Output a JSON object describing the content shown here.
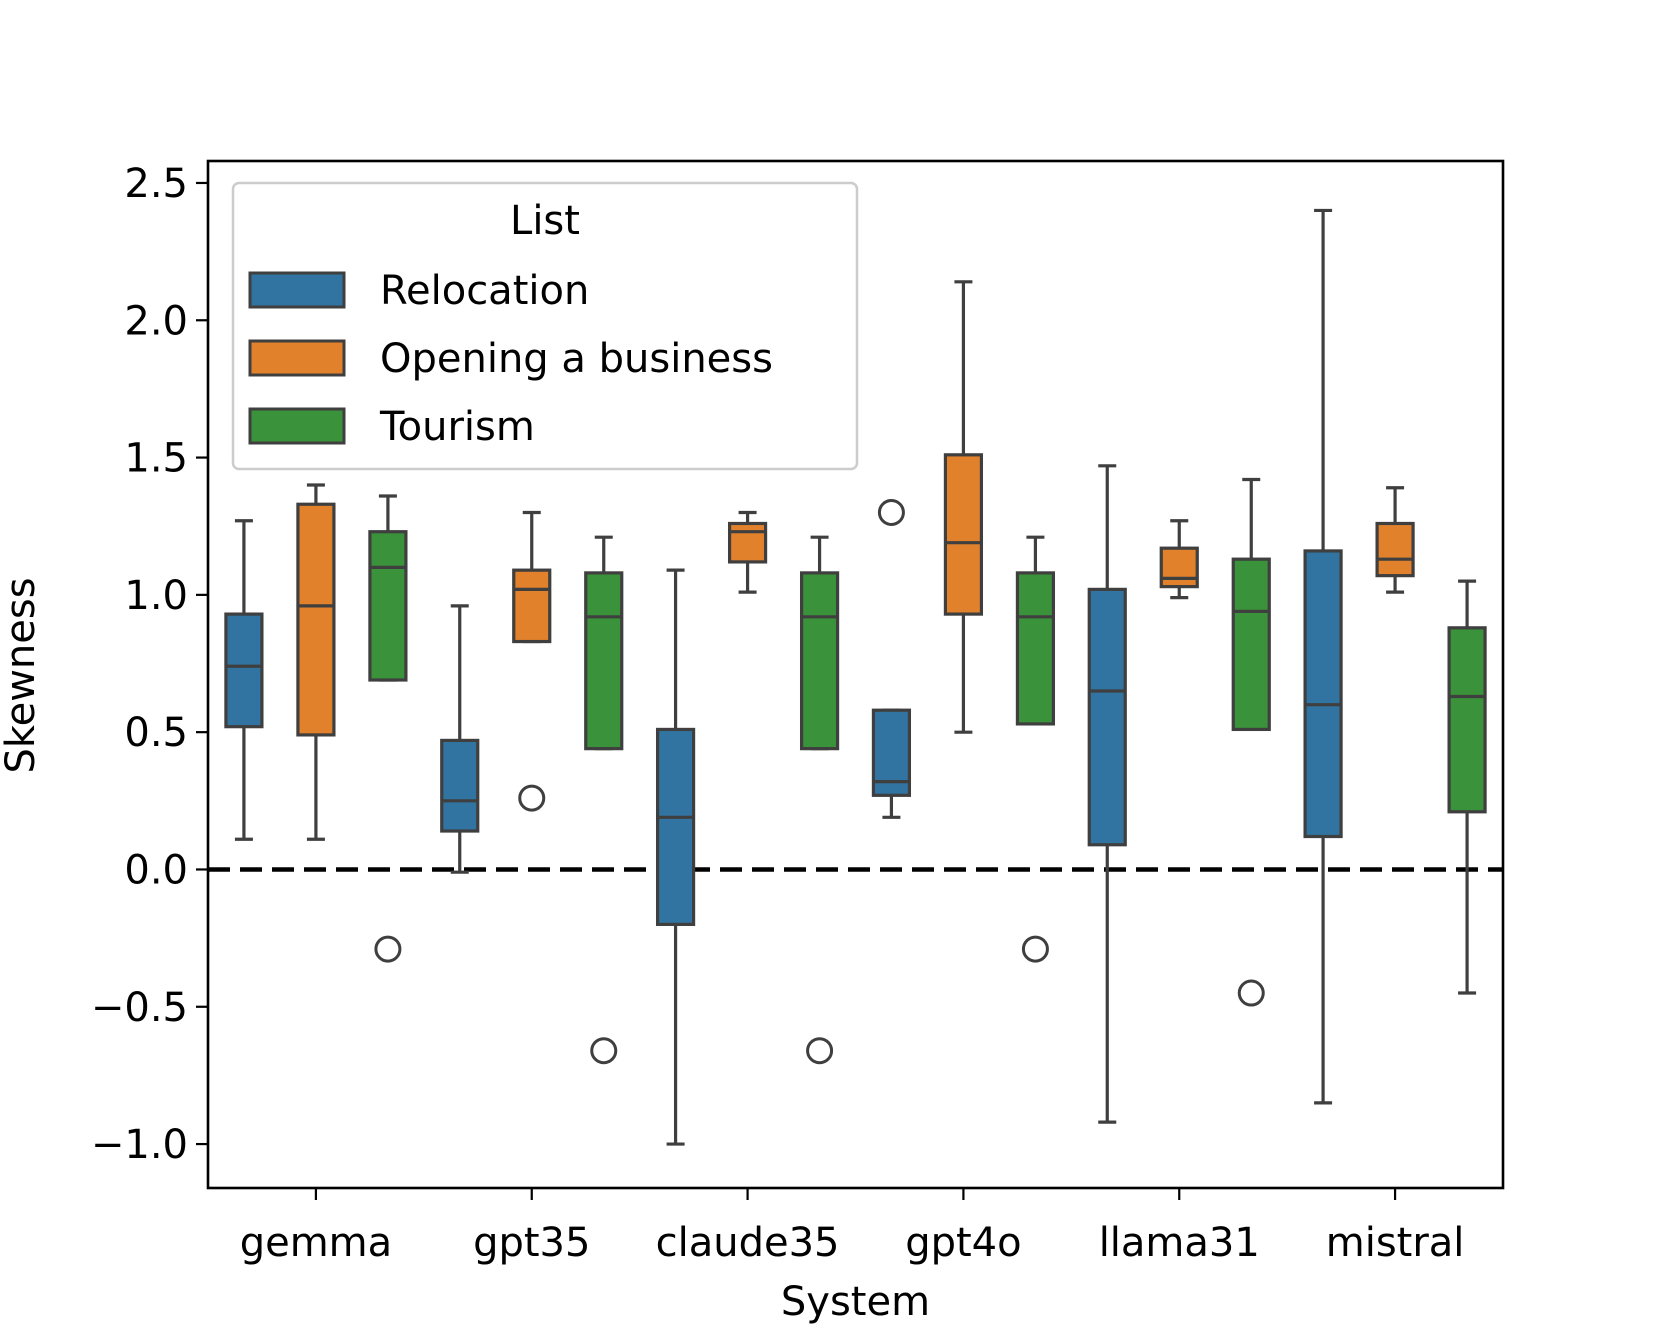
{
  "chart_data": {
    "type": "box",
    "xlabel": "System",
    "ylabel": "Skewness",
    "ylim": [
      -1.16,
      2.58
    ],
    "yticks": [
      -1.0,
      -0.5,
      0.0,
      0.5,
      1.0,
      1.5,
      2.0,
      2.5
    ],
    "ytick_labels": [
      "−1.0",
      "−0.5",
      "0.0",
      "0.5",
      "1.0",
      "1.5",
      "2.0",
      "2.5"
    ],
    "categories": [
      "gemma",
      "gpt35",
      "claude35",
      "gpt4o",
      "llama31",
      "mistral"
    ],
    "reference_line": {
      "y": 0.0,
      "style": "dashed",
      "color": "#000000"
    },
    "legend": {
      "title": "List",
      "location": "upper-left"
    },
    "series": [
      {
        "name": "Relocation",
        "color": "#3274a1",
        "boxes": [
          {
            "whislo": 0.11,
            "q1": 0.52,
            "med": 0.74,
            "q3": 0.93,
            "whishi": 1.27,
            "fliers": []
          },
          {
            "whislo": -0.01,
            "q1": 0.14,
            "med": 0.25,
            "q3": 0.47,
            "whishi": 0.96,
            "fliers": []
          },
          {
            "whislo": -1.0,
            "q1": -0.2,
            "med": 0.19,
            "q3": 0.51,
            "whishi": 1.09,
            "fliers": []
          },
          {
            "whislo": 0.19,
            "q1": 0.27,
            "med": 0.32,
            "q3": 0.58,
            "whishi": 0.58,
            "fliers": [
              1.3
            ]
          },
          {
            "whislo": -0.92,
            "q1": 0.09,
            "med": 0.65,
            "q3": 1.02,
            "whishi": 1.47,
            "fliers": []
          },
          {
            "whislo": -0.85,
            "q1": 0.12,
            "med": 0.6,
            "q3": 1.16,
            "whishi": 2.4,
            "fliers": []
          }
        ]
      },
      {
        "name": "Opening a business",
        "color": "#e1812c",
        "boxes": [
          {
            "whislo": 0.11,
            "q1": 0.49,
            "med": 0.96,
            "q3": 1.33,
            "whishi": 1.4,
            "fliers": []
          },
          {
            "whislo": 0.83,
            "q1": 0.83,
            "med": 1.02,
            "q3": 1.09,
            "whishi": 1.3,
            "fliers": [
              0.26
            ]
          },
          {
            "whislo": 1.01,
            "q1": 1.12,
            "med": 1.23,
            "q3": 1.26,
            "whishi": 1.3,
            "fliers": []
          },
          {
            "whislo": 0.5,
            "q1": 0.93,
            "med": 1.19,
            "q3": 1.51,
            "whishi": 2.14,
            "fliers": []
          },
          {
            "whislo": 0.99,
            "q1": 1.03,
            "med": 1.06,
            "q3": 1.17,
            "whishi": 1.27,
            "fliers": []
          },
          {
            "whislo": 1.01,
            "q1": 1.07,
            "med": 1.13,
            "q3": 1.26,
            "whishi": 1.39,
            "fliers": []
          }
        ]
      },
      {
        "name": "Tourism",
        "color": "#3a923a",
        "boxes": [
          {
            "whislo": 0.69,
            "q1": 0.69,
            "med": 1.1,
            "q3": 1.23,
            "whishi": 1.36,
            "fliers": [
              -0.29
            ]
          },
          {
            "whislo": 0.44,
            "q1": 0.44,
            "med": 0.92,
            "q3": 1.08,
            "whishi": 1.21,
            "fliers": [
              -0.66
            ]
          },
          {
            "whislo": 0.44,
            "q1": 0.44,
            "med": 0.92,
            "q3": 1.08,
            "whishi": 1.21,
            "fliers": [
              -0.66
            ]
          },
          {
            "whislo": 0.53,
            "q1": 0.53,
            "med": 0.92,
            "q3": 1.08,
            "whishi": 1.21,
            "fliers": [
              -0.29
            ]
          },
          {
            "whislo": 0.51,
            "q1": 0.51,
            "med": 0.94,
            "q3": 1.13,
            "whishi": 1.42,
            "fliers": [
              -0.45
            ]
          },
          {
            "whislo": -0.45,
            "q1": 0.21,
            "med": 0.63,
            "q3": 0.88,
            "whishi": 1.05,
            "fliers": []
          }
        ]
      }
    ]
  }
}
